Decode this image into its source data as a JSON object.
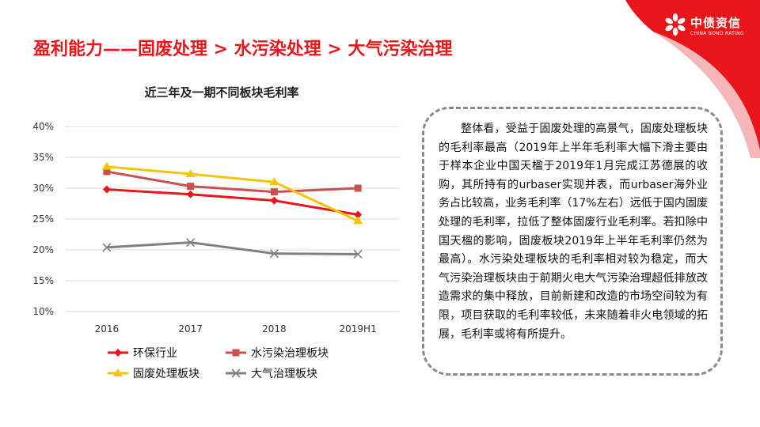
{
  "header": {
    "title": "盈利能力——固废处理 > 水污染处理 > 大气污染治理",
    "brand_name": "中债资信",
    "brand_en": "CHINA BOND RATING",
    "brand_icon": "snowflake-emblem-icon",
    "accent_color": "#e8161a"
  },
  "chart_data": {
    "type": "line",
    "title": "近三年及一期不同板块毛利率",
    "categories": [
      "2016",
      "2017",
      "2018",
      "2019H1"
    ],
    "ylim": [
      10,
      40
    ],
    "yticks": [
      10,
      15,
      20,
      25,
      30,
      35,
      40
    ],
    "ytick_labels": [
      "10%",
      "15%",
      "20%",
      "25%",
      "30%",
      "35%",
      "40%"
    ],
    "grid": true,
    "legend_position": "bottom",
    "series": [
      {
        "name": "环保行业",
        "values": [
          29.8,
          29.0,
          28.0,
          25.7
        ],
        "color": "#e8161a",
        "marker": "diamond"
      },
      {
        "name": "水污染治理板块",
        "values": [
          32.7,
          30.3,
          29.4,
          30.0
        ],
        "color": "#c9504e",
        "marker": "square"
      },
      {
        "name": "固废处理板块",
        "values": [
          33.5,
          32.3,
          31.0,
          24.7
        ],
        "color": "#f5c400",
        "marker": "triangle"
      },
      {
        "name": "大气治理板块",
        "values": [
          20.4,
          21.2,
          19.4,
          19.3
        ],
        "color": "#808080",
        "marker": "x"
      }
    ]
  },
  "commentary": {
    "text": "整体看，受益于固废处理的高景气，固废处理板块的毛利率最高（2019年上半年毛利率大幅下滑主要由于样本企业中国天楹于2019年1月完成江苏德展的收购，其所持有的urbaser实现并表，而urbaser海外业务占比较高，业务毛利率（17%左右）远低于国内固废处理的毛利率，拉低了整体固废行业毛利率。若扣除中国天楹的影响，固废板块2019年上半年毛利率仍然为最高）。水污染处理板块的毛利率相对较为稳定，而大气污染治理板块由于前期火电大气污染治理超低排放改造需求的集中释放，目前新建和改造的市场空间较为有限，项目获取的毛利率较低，未来随着非火电领域的拓展，毛利率或将有所提升。"
  }
}
